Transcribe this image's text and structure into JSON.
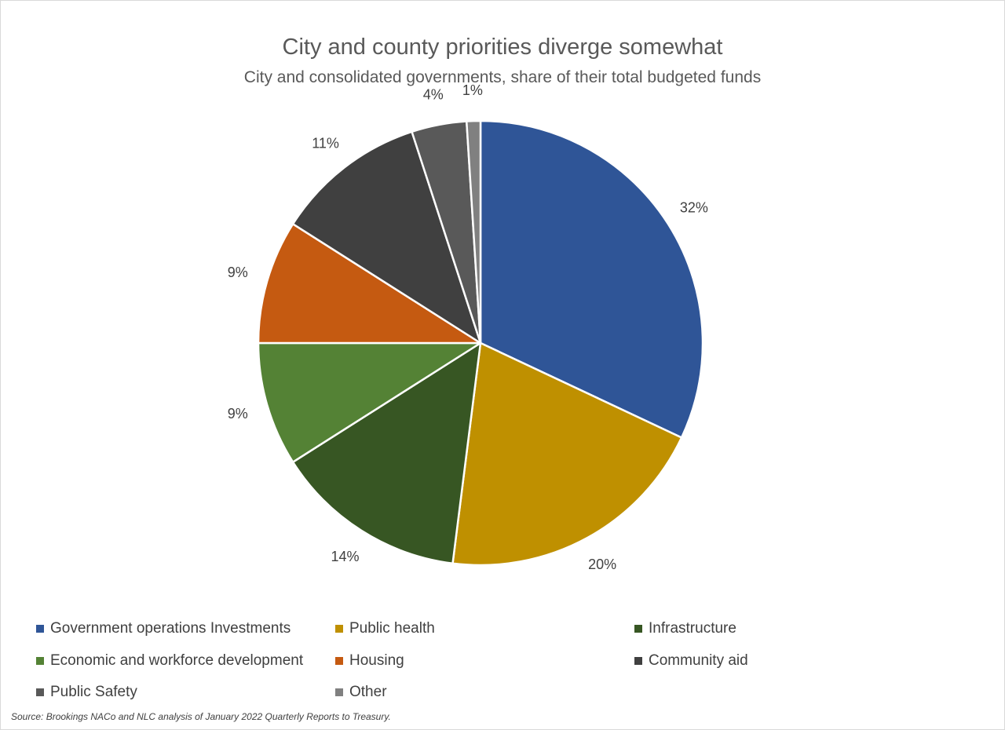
{
  "chart_data": {
    "type": "pie",
    "title": "City and county priorities diverge somewhat",
    "subtitle": "City and consolidated governments, share of their total budgeted funds",
    "categories": [
      "Government operations Investments",
      "Public health",
      "Infrastructure",
      "Economic and workforce development",
      "Housing",
      "Community aid",
      "Public Safety",
      "Other"
    ],
    "values": [
      32,
      20,
      14,
      9,
      9,
      11,
      4,
      1
    ],
    "data_labels": [
      "32%",
      "20%",
      "14%",
      "9%",
      "9%",
      "11%",
      "4%",
      "1%"
    ],
    "colors": [
      "#2f5597",
      "#bf9000",
      "#375623",
      "#548235",
      "#c55a11",
      "#404040",
      "#595959",
      "#808080"
    ],
    "start_angle_deg": 0,
    "direction": "clockwise",
    "legend_position": "bottom"
  },
  "source": "Source: Brookings NACo and NLC analysis of January 2022 Quarterly Reports to Treasury."
}
